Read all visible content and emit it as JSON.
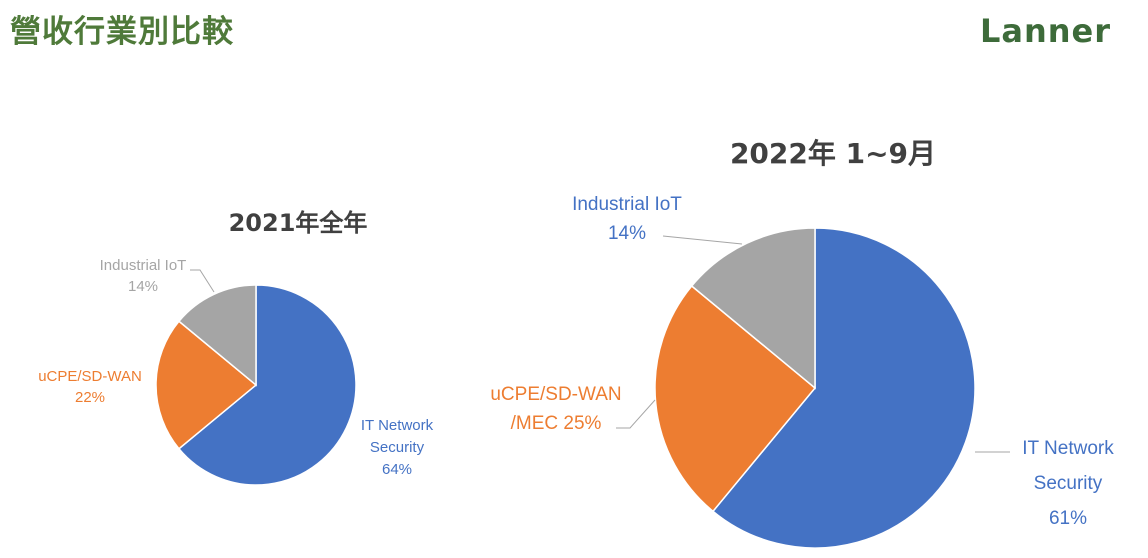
{
  "page": {
    "title": "營收行業別比較",
    "logo_text": "Lanner"
  },
  "chart_data": [
    {
      "type": "pie",
      "title": "2021年全年",
      "slices": [
        {
          "label_lines": [
            "IT Network",
            "Security"
          ],
          "value_text": "64%",
          "value": 64,
          "color": "#4472c4"
        },
        {
          "label_lines": [
            "uCPE/SD-WAN"
          ],
          "value_text": "22%",
          "value": 22,
          "color": "#ed7d31"
        },
        {
          "label_lines": [
            "Industrial IoT"
          ],
          "value_text": "14%",
          "value": 14,
          "color": "#a5a5a5"
        }
      ]
    },
    {
      "type": "pie",
      "title": "2022年 1~9月",
      "slices": [
        {
          "label_lines": [
            "IT Network",
            "Security"
          ],
          "value_text": "61%",
          "value": 61,
          "color": "#4472c4"
        },
        {
          "label_lines": [
            "uCPE/SD-WAN",
            "/MEC 25%"
          ],
          "value_text": "",
          "value": 25,
          "color": "#ed7d31"
        },
        {
          "label_lines": [
            "Industrial IoT"
          ],
          "value_text": "14%",
          "value": 14,
          "color": "#a5a5a5"
        }
      ]
    }
  ]
}
